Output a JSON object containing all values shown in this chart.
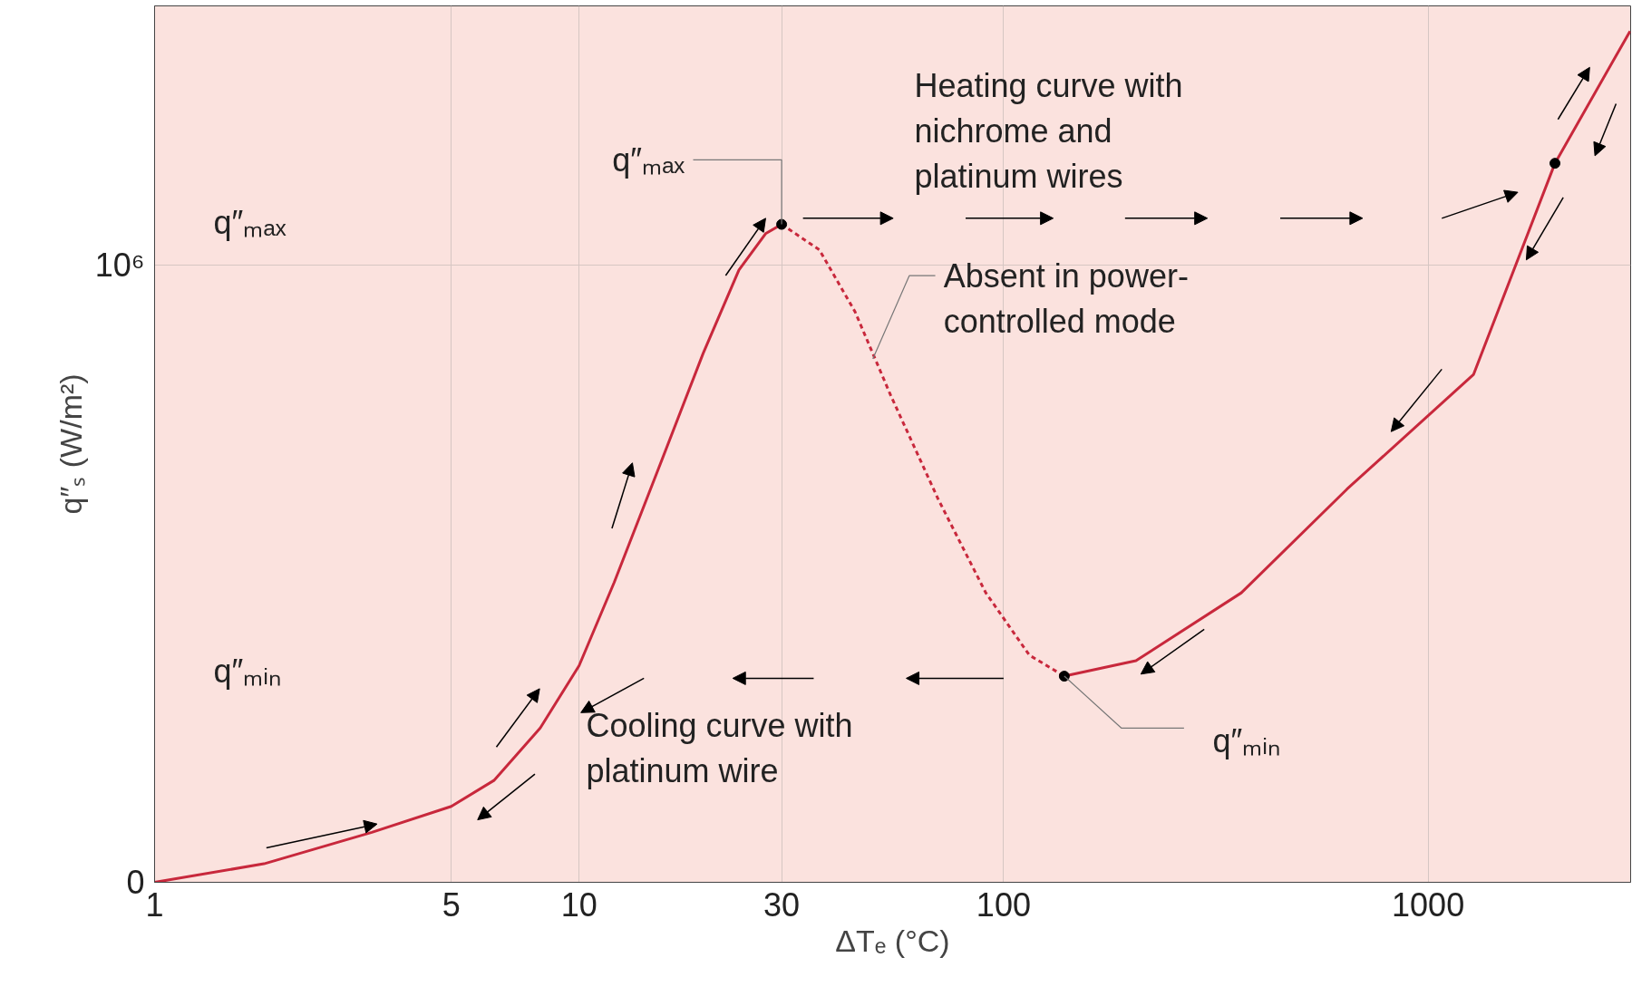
{
  "chart_data": {
    "type": "line",
    "xlabel": "ΔTₑ (°C)",
    "ylabel": "q″ₛ (W/m²)",
    "log": "x",
    "xlim": [
      1,
      3000
    ],
    "xticks": [
      1,
      5,
      10,
      30,
      100,
      1000
    ],
    "ylim": [
      0,
      1420000
    ],
    "yticks": [
      {
        "value": 0,
        "label": "0"
      },
      {
        "value": 1000000,
        "label": "10⁶"
      }
    ],
    "grid": true,
    "series": [
      {
        "color": "#c8283c",
        "line_style": "solid",
        "x": [
          1,
          1.81,
          3.25,
          5,
          6.3,
          8.1,
          10,
          12.1,
          15.4,
          19.6,
          23.8,
          27.5,
          30
        ],
        "values": [
          0,
          30000,
          81000,
          123000,
          165000,
          250000,
          351000,
          486000,
          671000,
          857000,
          992000,
          1051000,
          1066000
        ]
      },
      {
        "color": "#c8283c",
        "line_style": "dashed",
        "x": [
          30,
          36.8,
          44.7,
          54.2,
          70.1,
          90.8,
          115,
          139
        ],
        "values": [
          1066000,
          1025000,
          924000,
          789000,
          621000,
          469000,
          368000,
          334000
        ]
      },
      {
        "color": "#c8283c",
        "line_style": "solid",
        "x": [
          139,
          205,
          363,
          644,
          1280,
          1990,
          2990
        ],
        "values": [
          334000,
          359000,
          469000,
          637000,
          823000,
          1165000,
          1379000
        ]
      },
      {
        "type": "scatter",
        "marker": "circle",
        "color": "#000000",
        "x": [
          30,
          139,
          1990
        ],
        "values": [
          1066000,
          334000,
          1165000
        ]
      }
    ],
    "annotations": [
      "q″ₘₐₓ",
      "q″ₘᵢₙ",
      {
        "text": "q″ₘₐₓ",
        "x": 30,
        "y": 1066000
      },
      {
        "text": "q″ₘᵢₙ",
        "x": 139,
        "y": 334000
      },
      {
        "text": "Absent in power-\ncontrolled mode",
        "x": 49.2,
        "y": 848000
      },
      "Heating curve with\nnichrome and\nplatinum wires",
      "Cooling curve with\nplatinum wire"
    ]
  }
}
